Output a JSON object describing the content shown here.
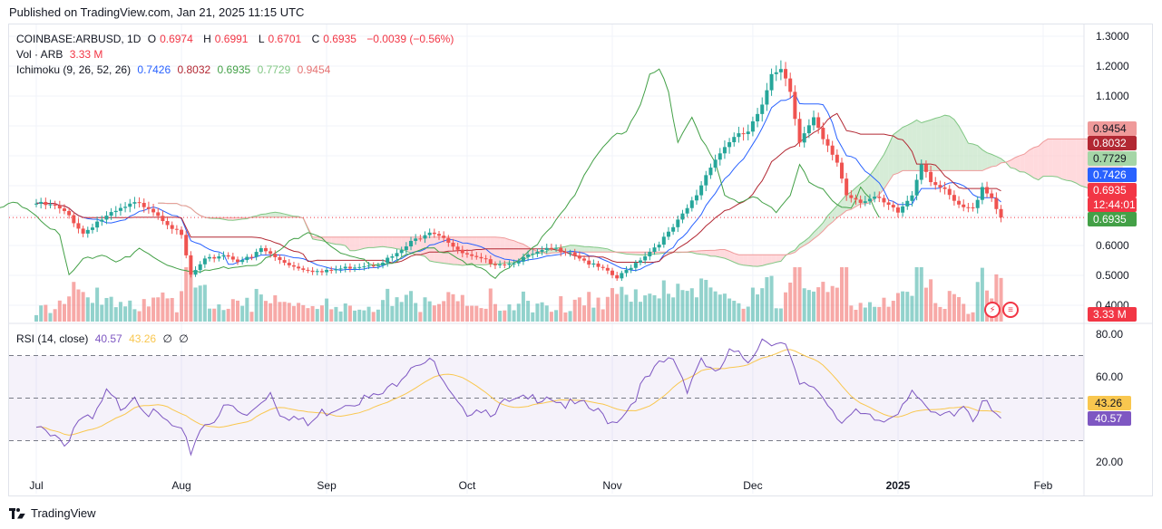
{
  "header": {
    "published": "Published on TradingView.com, Jan 21, 2025 11:15 UTC"
  },
  "legend": {
    "symbol": "COINBASE:ARBUSD, 1D",
    "o_label": "O",
    "o": "0.6974",
    "h_label": "H",
    "h": "0.6991",
    "l_label": "L",
    "l": "0.6701",
    "c_label": "C",
    "c": "0.6935",
    "change": "−0.0039 (−0.56%)",
    "vol_label": "Vol · ARB",
    "vol": "3.33 M",
    "ichimoku_label": "Ichimoku (9, 26, 52, 26)",
    "ich_conversion": "0.7426",
    "ich_base": "0.8032",
    "ich_lagging": "0.6935",
    "ich_spanA": "0.7729",
    "ich_spanB": "0.9454",
    "rsi_label": "RSI (14, close)",
    "rsi": "40.57",
    "rsi_ma": "43.26",
    "rsi_icons": [
      "∅",
      "∅"
    ]
  },
  "price_axis": [
    "1.3000",
    "1.2000",
    "1.1000",
    "0.6000",
    "0.5000",
    "0.4000"
  ],
  "price_badges": [
    {
      "text": "0.9454",
      "bg": "#ef9a9a",
      "fg": "#131722",
      "value": 0.9454
    },
    {
      "text": "0.8032",
      "bg": "#b22833",
      "fg": "#ffffff",
      "value": 0.8032
    },
    {
      "text": "0.7729",
      "bg": "#a5d6a7",
      "fg": "#131722",
      "value": 0.7729
    },
    {
      "text": "0.7426",
      "bg": "#2962ff",
      "fg": "#ffffff",
      "value": 0.7426
    },
    {
      "text": "0.6935",
      "bg": "#f23645",
      "fg": "#ffffff",
      "value": 0.6935
    },
    {
      "text": "12:44:01",
      "bg": "#f23645",
      "fg": "#ffffff",
      "value": null
    },
    {
      "text": "0.6935",
      "bg": "#43a047",
      "fg": "#ffffff",
      "value": 0.6935
    },
    {
      "text": "3.33 M",
      "bg": "#f23645",
      "fg": "#ffffff",
      "value": null
    }
  ],
  "rsi_axis": [
    "80.00",
    "60.00",
    "20.00"
  ],
  "rsi_badges": [
    {
      "text": "43.26",
      "bg": "#f9c74f",
      "fg": "#131722",
      "value": 43.26
    },
    {
      "text": "40.57",
      "bg": "#7e57c2",
      "fg": "#ffffff",
      "value": 40.57
    }
  ],
  "time_axis": [
    "Jul",
    "Aug",
    "Sep",
    "Oct",
    "Nov",
    "Dec",
    "2025",
    "Feb"
  ],
  "footer": {
    "brand": "TradingView"
  },
  "colors": {
    "up": "#26a69a",
    "down": "#ef5350",
    "conversion": "#2962ff",
    "base": "#b22833",
    "lagging": "#43a047",
    "cloud_bull": "#c8e6c9",
    "cloud_bear": "#ffcdd2",
    "rsi": "#7e57c2",
    "rsi_ma": "#f9c74f"
  },
  "chart_data": {
    "type": "candlestick",
    "title": "COINBASE:ARBUSD, 1D",
    "ylim": [
      0.38,
      1.32
    ],
    "rsi_ylim": [
      14,
      86
    ],
    "rsi_bands": [
      70,
      50,
      30
    ],
    "months": [
      {
        "label": "Jul",
        "day": 0
      },
      {
        "label": "Aug",
        "day": 31
      },
      {
        "label": "Sep",
        "day": 62
      },
      {
        "label": "Oct",
        "day": 92
      },
      {
        "label": "Nov",
        "day": 123
      },
      {
        "label": "Dec",
        "day": 153
      },
      {
        "label": "2025",
        "day": 184
      },
      {
        "label": "Feb",
        "day": 215
      }
    ],
    "close_keypoints": [
      [
        0,
        0.74
      ],
      [
        4,
        0.73
      ],
      [
        7,
        0.7
      ],
      [
        10,
        0.64
      ],
      [
        13,
        0.68
      ],
      [
        18,
        0.72
      ],
      [
        21,
        0.74
      ],
      [
        24,
        0.73
      ],
      [
        27,
        0.69
      ],
      [
        31,
        0.63
      ],
      [
        33,
        0.5
      ],
      [
        36,
        0.55
      ],
      [
        40,
        0.57
      ],
      [
        43,
        0.55
      ],
      [
        46,
        0.56
      ],
      [
        48,
        0.59
      ],
      [
        51,
        0.56
      ],
      [
        55,
        0.53
      ],
      [
        58,
        0.52
      ],
      [
        61,
        0.51
      ],
      [
        64,
        0.52
      ],
      [
        68,
        0.53
      ],
      [
        73,
        0.54
      ],
      [
        77,
        0.57
      ],
      [
        80,
        0.61
      ],
      [
        84,
        0.65
      ],
      [
        87,
        0.63
      ],
      [
        90,
        0.58
      ],
      [
        93,
        0.56
      ],
      [
        98,
        0.54
      ],
      [
        101,
        0.54
      ],
      [
        106,
        0.57
      ],
      [
        110,
        0.59
      ],
      [
        114,
        0.58
      ],
      [
        118,
        0.54
      ],
      [
        121,
        0.52
      ],
      [
        124,
        0.49
      ],
      [
        127,
        0.53
      ],
      [
        131,
        0.58
      ],
      [
        135,
        0.64
      ],
      [
        138,
        0.7
      ],
      [
        141,
        0.77
      ],
      [
        144,
        0.87
      ],
      [
        148,
        0.95
      ],
      [
        152,
        0.98
      ],
      [
        155,
        1.06
      ],
      [
        157,
        1.18
      ],
      [
        159,
        1.2
      ],
      [
        161,
        1.12
      ],
      [
        163,
        0.95
      ],
      [
        166,
        1.02
      ],
      [
        168,
        0.95
      ],
      [
        171,
        0.88
      ],
      [
        173,
        0.77
      ],
      [
        176,
        0.75
      ],
      [
        179,
        0.76
      ],
      [
        181,
        0.74
      ],
      [
        184,
        0.71
      ],
      [
        187,
        0.77
      ],
      [
        189,
        0.88
      ],
      [
        191,
        0.82
      ],
      [
        194,
        0.78
      ],
      [
        197,
        0.73
      ],
      [
        200,
        0.72
      ],
      [
        202,
        0.8
      ],
      [
        204,
        0.76
      ],
      [
        206,
        0.69
      ]
    ],
    "ichimoku": {
      "conversion": 0.7426,
      "base": 0.8032,
      "lagging": 0.6935,
      "span_a": 0.7729,
      "span_b": 0.9454
    },
    "volume_last": "3.33 M",
    "rsi_keypoints": [
      [
        0,
        35
      ],
      [
        4,
        34
      ],
      [
        6,
        28
      ],
      [
        9,
        40
      ],
      [
        12,
        39
      ],
      [
        15,
        52
      ],
      [
        18,
        46
      ],
      [
        21,
        52
      ],
      [
        24,
        43
      ],
      [
        27,
        40
      ],
      [
        31,
        33
      ],
      [
        33,
        25
      ],
      [
        35,
        36
      ],
      [
        38,
        41
      ],
      [
        41,
        46
      ],
      [
        45,
        41
      ],
      [
        48,
        49
      ],
      [
        50,
        53
      ],
      [
        52,
        44
      ],
      [
        55,
        41
      ],
      [
        58,
        37
      ],
      [
        61,
        43
      ],
      [
        64,
        46
      ],
      [
        67,
        49
      ],
      [
        72,
        50
      ],
      [
        75,
        53
      ],
      [
        80,
        66
      ],
      [
        84,
        69
      ],
      [
        88,
        52
      ],
      [
        91,
        43
      ],
      [
        94,
        46
      ],
      [
        97,
        44
      ],
      [
        100,
        47
      ],
      [
        105,
        49
      ],
      [
        109,
        52
      ],
      [
        113,
        47
      ],
      [
        117,
        46
      ],
      [
        120,
        43
      ],
      [
        123,
        39
      ],
      [
        126,
        44
      ],
      [
        129,
        55
      ],
      [
        133,
        65
      ],
      [
        136,
        69
      ],
      [
        139,
        55
      ],
      [
        142,
        69
      ],
      [
        145,
        60
      ],
      [
        148,
        71
      ],
      [
        152,
        68
      ],
      [
        155,
        78
      ],
      [
        158,
        77
      ],
      [
        160,
        74
      ],
      [
        163,
        55
      ],
      [
        166,
        56
      ],
      [
        169,
        48
      ],
      [
        172,
        40
      ],
      [
        175,
        42
      ],
      [
        178,
        40
      ],
      [
        181,
        39
      ],
      [
        184,
        45
      ],
      [
        187,
        55
      ],
      [
        189,
        46
      ],
      [
        192,
        41
      ],
      [
        195,
        42
      ],
      [
        198,
        48
      ],
      [
        200,
        40
      ],
      [
        202,
        49
      ],
      [
        204,
        43
      ],
      [
        206,
        40.57
      ]
    ],
    "rsi_last": 40.57,
    "rsi_ma_last": 43.26
  }
}
